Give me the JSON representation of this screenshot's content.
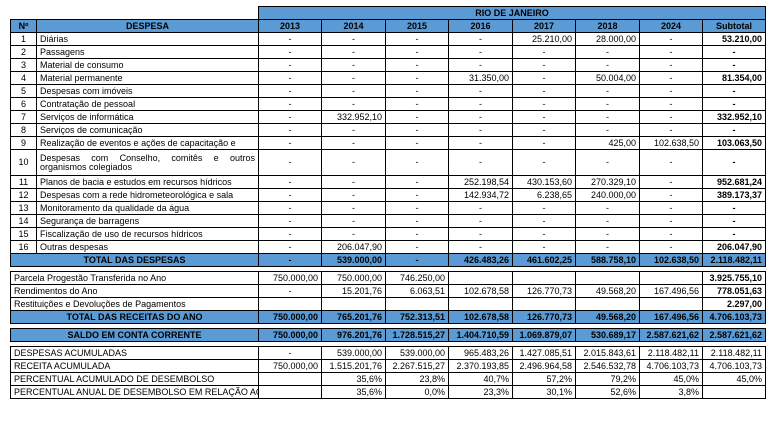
{
  "header": {
    "region": "RIO DE JANEIRO",
    "columns": [
      "Nº",
      "DESPESA",
      "2013",
      "2014",
      "2015",
      "2016",
      "2017",
      "2018",
      "2024",
      "Subtotal"
    ]
  },
  "rows": [
    {
      "n": "1",
      "label": "Diárias",
      "v": [
        "-",
        "-",
        "-",
        "-",
        "25.210,00",
        "28.000,00",
        "-",
        "53.210,00"
      ]
    },
    {
      "n": "2",
      "label": "Passagens",
      "v": [
        "-",
        "-",
        "-",
        "-",
        "-",
        "-",
        "-",
        "-"
      ]
    },
    {
      "n": "3",
      "label": "Material de consumo",
      "v": [
        "-",
        "-",
        "-",
        "-",
        "-",
        "-",
        "-",
        "-"
      ]
    },
    {
      "n": "4",
      "label": "Material permanente",
      "v": [
        "-",
        "-",
        "-",
        "31.350,00",
        "-",
        "50.004,00",
        "-",
        "81.354,00"
      ]
    },
    {
      "n": "5",
      "label": "Despesas com imóveis",
      "v": [
        "-",
        "-",
        "-",
        "-",
        "-",
        "-",
        "-",
        "-"
      ]
    },
    {
      "n": "6",
      "label": "Contratação de pessoal",
      "v": [
        "-",
        "-",
        "-",
        "-",
        "-",
        "-",
        "-",
        "-"
      ]
    },
    {
      "n": "7",
      "label": "Serviços de informática",
      "v": [
        "-",
        "332.952,10",
        "-",
        "-",
        "-",
        "-",
        "-",
        "332.952,10"
      ]
    },
    {
      "n": "8",
      "label": "Serviços de comunicação",
      "v": [
        "-",
        "-",
        "-",
        "-",
        "-",
        "-",
        "-",
        "-"
      ]
    },
    {
      "n": "9",
      "label": "Realização de eventos e ações de capacitação e",
      "v": [
        "-",
        "-",
        "-",
        "-",
        "-",
        "425,00",
        "102.638,50",
        "103.063,50"
      ]
    },
    {
      "n": "10",
      "label": "Despesas com Conselho, comitês e outros organismos colegiados",
      "v": [
        "-",
        "-",
        "-",
        "-",
        "-",
        "-",
        "-",
        "-"
      ]
    },
    {
      "n": "11",
      "label": "Planos de bacia e estudos em recursos hídricos",
      "v": [
        "-",
        "-",
        "-",
        "252.198,54",
        "430.153,60",
        "270.329,10",
        "-",
        "952.681,24"
      ]
    },
    {
      "n": "12",
      "label": "Despesas com a rede hidrometeorológica e sala",
      "v": [
        "-",
        "-",
        "-",
        "142.934,72",
        "6.238,65",
        "240.000,00",
        "-",
        "389.173,37"
      ]
    },
    {
      "n": "13",
      "label": "Monitoramento da qualidade da água",
      "v": [
        "-",
        "-",
        "-",
        "-",
        "-",
        "-",
        "-",
        "-"
      ]
    },
    {
      "n": "14",
      "label": "Segurança de barragens",
      "v": [
        "-",
        "-",
        "-",
        "-",
        "-",
        "-",
        "-",
        "-"
      ]
    },
    {
      "n": "15",
      "label": "Fiscalização de uso de recursos hídricos",
      "v": [
        "-",
        "-",
        "-",
        "-",
        "-",
        "-",
        "-",
        "-"
      ]
    },
    {
      "n": "16",
      "label": "Outras despesas",
      "v": [
        "-",
        "206.047,90",
        "-",
        "-",
        "-",
        "-",
        "-",
        "206.047,90"
      ]
    }
  ],
  "total_despesas": {
    "label": "TOTAL DAS DESPESAS",
    "v": [
      "-",
      "539.000,00",
      "-",
      "426.483,26",
      "461.602,25",
      "588.758,10",
      "102.638,50",
      "2.118.482,11"
    ]
  },
  "receitas": [
    {
      "label": "Parcela Progestão Transferida no Ano",
      "v": [
        "750.000,00",
        "750.000,00",
        "746.250,00",
        "",
        "",
        "",
        "",
        "3.925.755,10"
      ]
    },
    {
      "label": "Rendimentos do Ano",
      "v": [
        "-",
        "15.201,76",
        "6.063,51",
        "102.678,58",
        "126.770,73",
        "49.568,20",
        "167.496,56",
        "778.051,63"
      ]
    },
    {
      "label": "Restituições e Devoluções de Pagamentos",
      "v": [
        "",
        "",
        "",
        "",
        "",
        "",
        "",
        "2.297,00"
      ]
    }
  ],
  "total_receitas": {
    "label": "TOTAL DAS RECEITAS DO ANO",
    "v": [
      "750.000,00",
      "765.201,76",
      "752.313,51",
      "102.678,58",
      "126.770,73",
      "49.568,20",
      "167.496,56",
      "4.706.103,73"
    ]
  },
  "saldo": {
    "label": "SALDO EM CONTA CORRENTE",
    "v": [
      "750.000,00",
      "976.201,76",
      "1.728.515,27",
      "1.404.710,59",
      "1.069.879,07",
      "530.689,17",
      "2.587.621,62",
      "2.587.621,62"
    ]
  },
  "acumulados": [
    {
      "label": "DESPESAS ACUMULADAS",
      "v": [
        "-",
        "539.000,00",
        "539.000,00",
        "965.483,26",
        "1.427.085,51",
        "2.015.843,61",
        "2.118.482,11",
        "2.118.482,11"
      ]
    },
    {
      "label": "RECEITA ACUMULADA",
      "v": [
        "750.000,00",
        "1.515.201,76",
        "2.267.515,27",
        "2.370.193,85",
        "2.496.964,58",
        "2.546.532,78",
        "4.706.103,73",
        "4.706.103,73"
      ]
    },
    {
      "label": "PERCENTUAL ACUMULADO DE DESEMBOLSO",
      "v": [
        "",
        "35,6%",
        "23,8%",
        "40,7%",
        "57,2%",
        "79,2%",
        "45,0%",
        "45,0%"
      ]
    },
    {
      "label": "PERCENTUAL ANUAL DE DESEMBOLSO EM RELAÇÃO AO",
      "v": [
        "",
        "35,6%",
        "0,0%",
        "23,3%",
        "30,1%",
        "52,6%",
        "3,8%",
        ""
      ]
    }
  ]
}
